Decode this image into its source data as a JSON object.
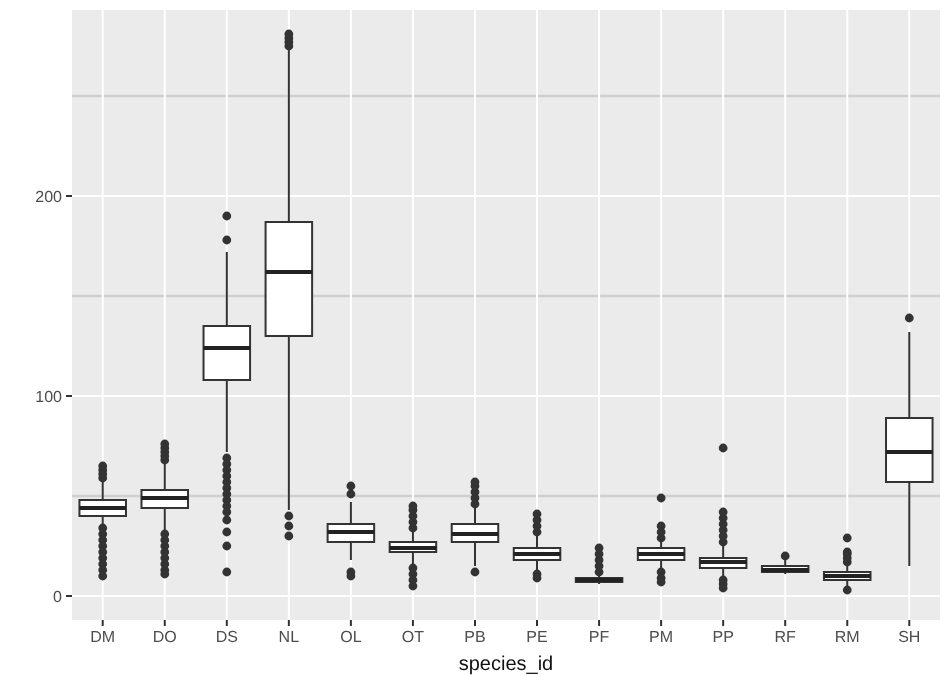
{
  "chart_data": {
    "type": "box",
    "xlabel": "species_id",
    "categories": [
      "DM",
      "DO",
      "DS",
      "NL",
      "OL",
      "OT",
      "PB",
      "PE",
      "PF",
      "PM",
      "PP",
      "RF",
      "RM",
      "SH"
    ],
    "boxes": [
      {
        "low": 36,
        "q1": 40,
        "median": 44,
        "q3": 48,
        "high": 58,
        "outliers": [
          59,
          61,
          63,
          65,
          34,
          31,
          28,
          25,
          22,
          19,
          16,
          13,
          10
        ]
      },
      {
        "low": 33,
        "q1": 44,
        "median": 49,
        "q3": 53,
        "high": 66,
        "outliers": [
          68,
          70,
          72,
          74,
          76,
          31,
          28,
          25,
          22,
          19,
          16,
          13,
          11
        ]
      },
      {
        "low": 72,
        "q1": 108,
        "median": 124,
        "q3": 135,
        "high": 172,
        "outliers": [
          178,
          190,
          69,
          66,
          63,
          60,
          57,
          54,
          51,
          48,
          45,
          42,
          38,
          32,
          25,
          12
        ]
      },
      {
        "low": 43,
        "q1": 130,
        "median": 162,
        "q3": 187,
        "high": 273,
        "outliers": [
          275,
          277,
          279,
          281,
          40,
          35,
          30
        ]
      },
      {
        "low": 18,
        "q1": 27,
        "median": 32,
        "q3": 36,
        "high": 47,
        "outliers": [
          51,
          55,
          12,
          10
        ]
      },
      {
        "low": 16,
        "q1": 22,
        "median": 24,
        "q3": 27,
        "high": 32,
        "outliers": [
          34,
          37,
          40,
          43,
          45,
          14,
          11,
          8,
          5
        ]
      },
      {
        "low": 15,
        "q1": 27,
        "median": 31,
        "q3": 36,
        "high": 44,
        "outliers": [
          46,
          49,
          52,
          55,
          57,
          12
        ]
      },
      {
        "low": 12,
        "q1": 18,
        "median": 21,
        "q3": 24,
        "high": 30,
        "outliers": [
          32,
          35,
          38,
          41,
          11,
          9
        ]
      },
      {
        "low": 6,
        "q1": 7,
        "median": 8,
        "q3": 9,
        "high": 11,
        "outliers": [
          12,
          15,
          18,
          21,
          24
        ]
      },
      {
        "low": 14,
        "q1": 18,
        "median": 21,
        "q3": 24,
        "high": 27,
        "outliers": [
          29,
          32,
          35,
          49,
          12,
          9,
          7
        ]
      },
      {
        "low": 10,
        "q1": 14,
        "median": 17,
        "q3": 19,
        "high": 25,
        "outliers": [
          27,
          30,
          33,
          36,
          39,
          42,
          74,
          8,
          6,
          4
        ]
      },
      {
        "low": 11,
        "q1": 12,
        "median": 13,
        "q3": 15,
        "high": 18,
        "outliers": [
          20
        ]
      },
      {
        "low": 5,
        "q1": 8,
        "median": 10,
        "q3": 12,
        "high": 16,
        "outliers": [
          17,
          19,
          21,
          22,
          29,
          3
        ]
      },
      {
        "low": 15,
        "q1": 57,
        "median": 72,
        "q3": 89,
        "high": 132,
        "outliers": [
          139
        ]
      }
    ],
    "color": "#ffffff",
    "ylim": [
      -12,
      293
    ],
    "yticks": [
      0,
      {
        "value": 50,
        "label": null
      },
      100,
      {
        "value": 150,
        "label": null
      },
      200,
      {
        "value": 250,
        "label": null
      }
    ],
    "grid": true
  }
}
